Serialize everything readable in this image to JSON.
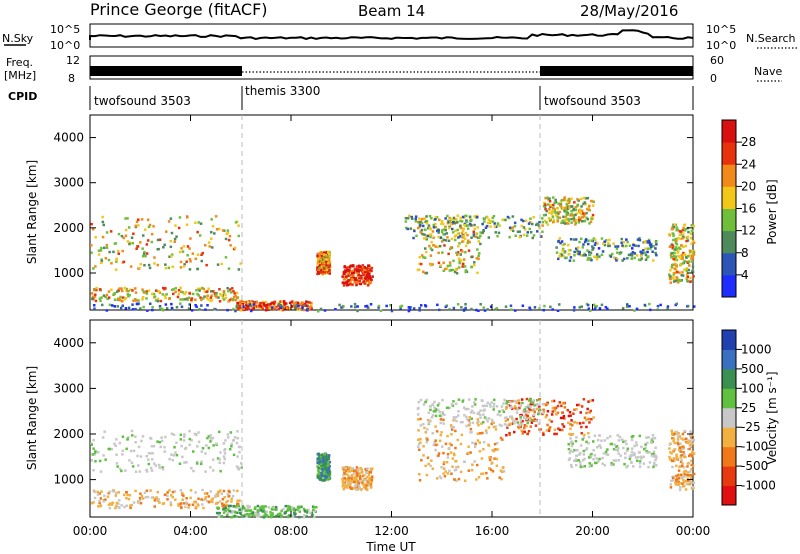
{
  "header": {
    "station": "Prince George (fitACF)",
    "beam": "Beam 14",
    "date": "28/May/2016"
  },
  "top_panels": {
    "nsky_label": "N.Sky",
    "nsky_ticks": [
      "10^5",
      "10^0"
    ],
    "nsearch_label": "N.Search",
    "nsearch_ticks": [
      "10^5",
      "10^0"
    ],
    "freq_label_1": "Freq.",
    "freq_label_2": "[MHz]",
    "freq_ticks": [
      "12",
      "8"
    ],
    "nave_label": "Nave",
    "nave_ticks": [
      "60",
      "0"
    ],
    "cpid_label": "CPID",
    "cpid_segments": [
      {
        "name": "twofsound 3503",
        "start": 0,
        "end": 6
      },
      {
        "name": "themis 3300",
        "start": 6,
        "end": 18
      },
      {
        "name": "twofsound 3503",
        "start": 18,
        "end": 24
      }
    ]
  },
  "chart_data": [
    {
      "type": "heatmap",
      "title": "Power",
      "ylabel": "Slant Range [km]",
      "xlabel": "",
      "xlim": [
        0,
        24
      ],
      "ylim": [
        180,
        4500
      ],
      "yticks": [
        "1000",
        "2000",
        "3000",
        "4000"
      ],
      "colorbar_label": "Power [dB]",
      "colorbar_ticks": [
        "4",
        "8",
        "12",
        "16",
        "20",
        "24",
        "28"
      ],
      "colorbar_colors": [
        "#1f2cff",
        "#2b56b8",
        "#4f8a5c",
        "#6fbf3a",
        "#f2c71a",
        "#f28a1a",
        "#e8320e",
        "#d81010"
      ],
      "echo_regions": [
        {
          "t0": 0.0,
          "t1": 6.0,
          "r0": 1100,
          "r1": 2300,
          "level": 0.55
        },
        {
          "t0": 0.0,
          "t1": 6.0,
          "r0": 400,
          "r1": 700,
          "level": 0.6
        },
        {
          "t0": 5.8,
          "t1": 8.8,
          "r0": 200,
          "r1": 400,
          "level": 0.8
        },
        {
          "t0": 9.0,
          "t1": 9.5,
          "r0": 1000,
          "r1": 1500,
          "level": 0.7
        },
        {
          "t0": 10.0,
          "t1": 11.2,
          "r0": 750,
          "r1": 1200,
          "level": 0.9
        },
        {
          "t0": 13.0,
          "t1": 15.5,
          "r0": 1000,
          "r1": 2300,
          "level": 0.55
        },
        {
          "t0": 12.5,
          "t1": 18.0,
          "r0": 1800,
          "r1": 2300,
          "level": 0.4
        },
        {
          "t0": 18.0,
          "t1": 20.0,
          "r0": 2100,
          "r1": 2700,
          "level": 0.55
        },
        {
          "t0": 18.5,
          "t1": 22.5,
          "r0": 1300,
          "r1": 1800,
          "level": 0.35
        },
        {
          "t0": 23.0,
          "t1": 24.0,
          "r0": 800,
          "r1": 2100,
          "level": 0.55
        },
        {
          "t0": 0.0,
          "t1": 24.0,
          "r0": 180,
          "r1": 350,
          "level": 0.2
        }
      ]
    },
    {
      "type": "heatmap",
      "title": "Velocity",
      "ylabel": "Slant Range [km]",
      "xlabel": "Time UT",
      "xlim": [
        0,
        24
      ],
      "ylim": [
        180,
        4500
      ],
      "yticks": [
        "1000",
        "2000",
        "3000",
        "4000"
      ],
      "xticks": [
        "00:00",
        "04:00",
        "08:00",
        "12:00",
        "16:00",
        "20:00",
        "00:00"
      ],
      "colorbar_label": "Velocity [m s⁻¹]",
      "colorbar_ticks": [
        "1000",
        "500",
        "100",
        "25",
        "-25",
        "-100",
        "-500",
        "-1000"
      ],
      "colorbar_colors": [
        "#2040b0",
        "#3a70c0",
        "#3a9050",
        "#60c040",
        "#c8c8c8",
        "#f2b040",
        "#f07818",
        "#e83a10",
        "#e01010"
      ],
      "echo_regions": [
        {
          "t0": 0.0,
          "t1": 6.0,
          "r0": 1200,
          "r1": 2100,
          "level": "gray"
        },
        {
          "t0": 0.0,
          "t1": 6.0,
          "r0": 400,
          "r1": 800,
          "level": "orange"
        },
        {
          "t0": 5.0,
          "t1": 9.0,
          "r0": 200,
          "r1": 450,
          "level": "green"
        },
        {
          "t0": 9.0,
          "t1": 9.5,
          "r0": 1000,
          "r1": 1600,
          "level": "darkgreen"
        },
        {
          "t0": 10.0,
          "t1": 11.2,
          "r0": 800,
          "r1": 1300,
          "level": "orange"
        },
        {
          "t0": 13.0,
          "t1": 16.5,
          "r0": 1000,
          "r1": 2400,
          "level": "orange"
        },
        {
          "t0": 16.5,
          "t1": 20.0,
          "r0": 2000,
          "r1": 2800,
          "level": "red"
        },
        {
          "t0": 13.0,
          "t1": 18.0,
          "r0": 2200,
          "r1": 2800,
          "level": "gray"
        },
        {
          "t0": 19.0,
          "t1": 22.5,
          "r0": 1300,
          "r1": 2000,
          "level": "gray"
        },
        {
          "t0": 23.0,
          "t1": 24.0,
          "r0": 800,
          "r1": 2100,
          "level": "orange"
        }
      ]
    }
  ]
}
